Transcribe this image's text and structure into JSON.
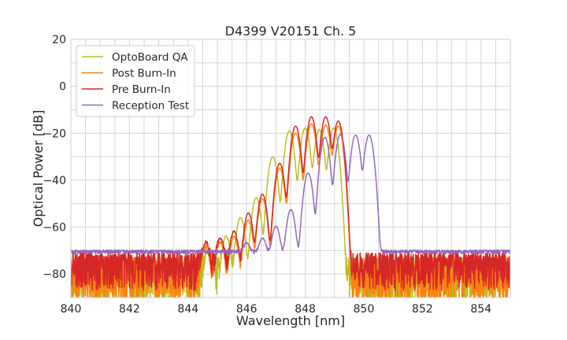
{
  "chart_data": {
    "type": "line",
    "title": "D4399 V20151 Ch. 5",
    "xlabel": "Wavelength [nm]",
    "ylabel": "Optical Power [dB]",
    "xlim": [
      840,
      855
    ],
    "ylim": [
      -90,
      20
    ],
    "xticks": [
      840,
      842,
      844,
      846,
      848,
      850,
      852,
      854
    ],
    "yticks": [
      20,
      0,
      -20,
      -40,
      -60,
      -80
    ],
    "grid": true,
    "legend_position": "top-left",
    "series": [
      {
        "name": "OptoBoard QA",
        "color": "#bcbd22",
        "peak_sigma_nm": 0.08,
        "peaks": [
          [
            844.7,
            -70
          ],
          [
            845.3,
            -64
          ],
          [
            845.79,
            -56
          ],
          [
            846.33,
            -47.5
          ],
          [
            846.89,
            -30
          ],
          [
            847.46,
            -19
          ],
          [
            848.0,
            -17.8
          ],
          [
            848.48,
            -18.5
          ],
          [
            848.97,
            -17.8
          ]
        ],
        "noise_floor_db": -73,
        "noise_depth_db": 22
      },
      {
        "name": "Post Burn-In",
        "color": "#ff7f0e",
        "peak_sigma_nm": 0.08,
        "peaks": [
          [
            844.6,
            -69
          ],
          [
            845.1,
            -67
          ],
          [
            845.57,
            -64
          ],
          [
            846.06,
            -57
          ],
          [
            846.54,
            -48
          ],
          [
            847.13,
            -35
          ],
          [
            847.67,
            -20
          ],
          [
            848.21,
            -16
          ],
          [
            848.7,
            -16.5
          ],
          [
            849.13,
            -17
          ]
        ],
        "noise_floor_db": -73,
        "noise_depth_db": 20
      },
      {
        "name": "Pre Burn-In",
        "color": "#d62728",
        "peak_sigma_nm": 0.08,
        "peaks": [
          [
            844.6,
            -67
          ],
          [
            845.1,
            -65
          ],
          [
            845.57,
            -62
          ],
          [
            846.06,
            -54
          ],
          [
            846.54,
            -46
          ],
          [
            847.13,
            -32.8
          ],
          [
            847.67,
            -17
          ],
          [
            848.21,
            -13
          ],
          [
            848.7,
            -13
          ],
          [
            849.13,
            -14.8
          ]
        ],
        "noise_floor_db": -71,
        "noise_depth_db": 16
      },
      {
        "name": "Reception Test",
        "color": "#9467bd",
        "peak_sigma_nm": 0.08,
        "peaks": [
          [
            846.0,
            -69
          ],
          [
            846.54,
            -66
          ],
          [
            847.0,
            -60
          ],
          [
            847.51,
            -52.6
          ],
          [
            848.1,
            -37
          ],
          [
            848.67,
            -21.8
          ],
          [
            849.2,
            -20.5
          ],
          [
            849.72,
            -20.8
          ],
          [
            850.18,
            -20.8
          ]
        ],
        "noise_floor_db": -69.8,
        "noise_depth_db": 1.6
      }
    ]
  }
}
